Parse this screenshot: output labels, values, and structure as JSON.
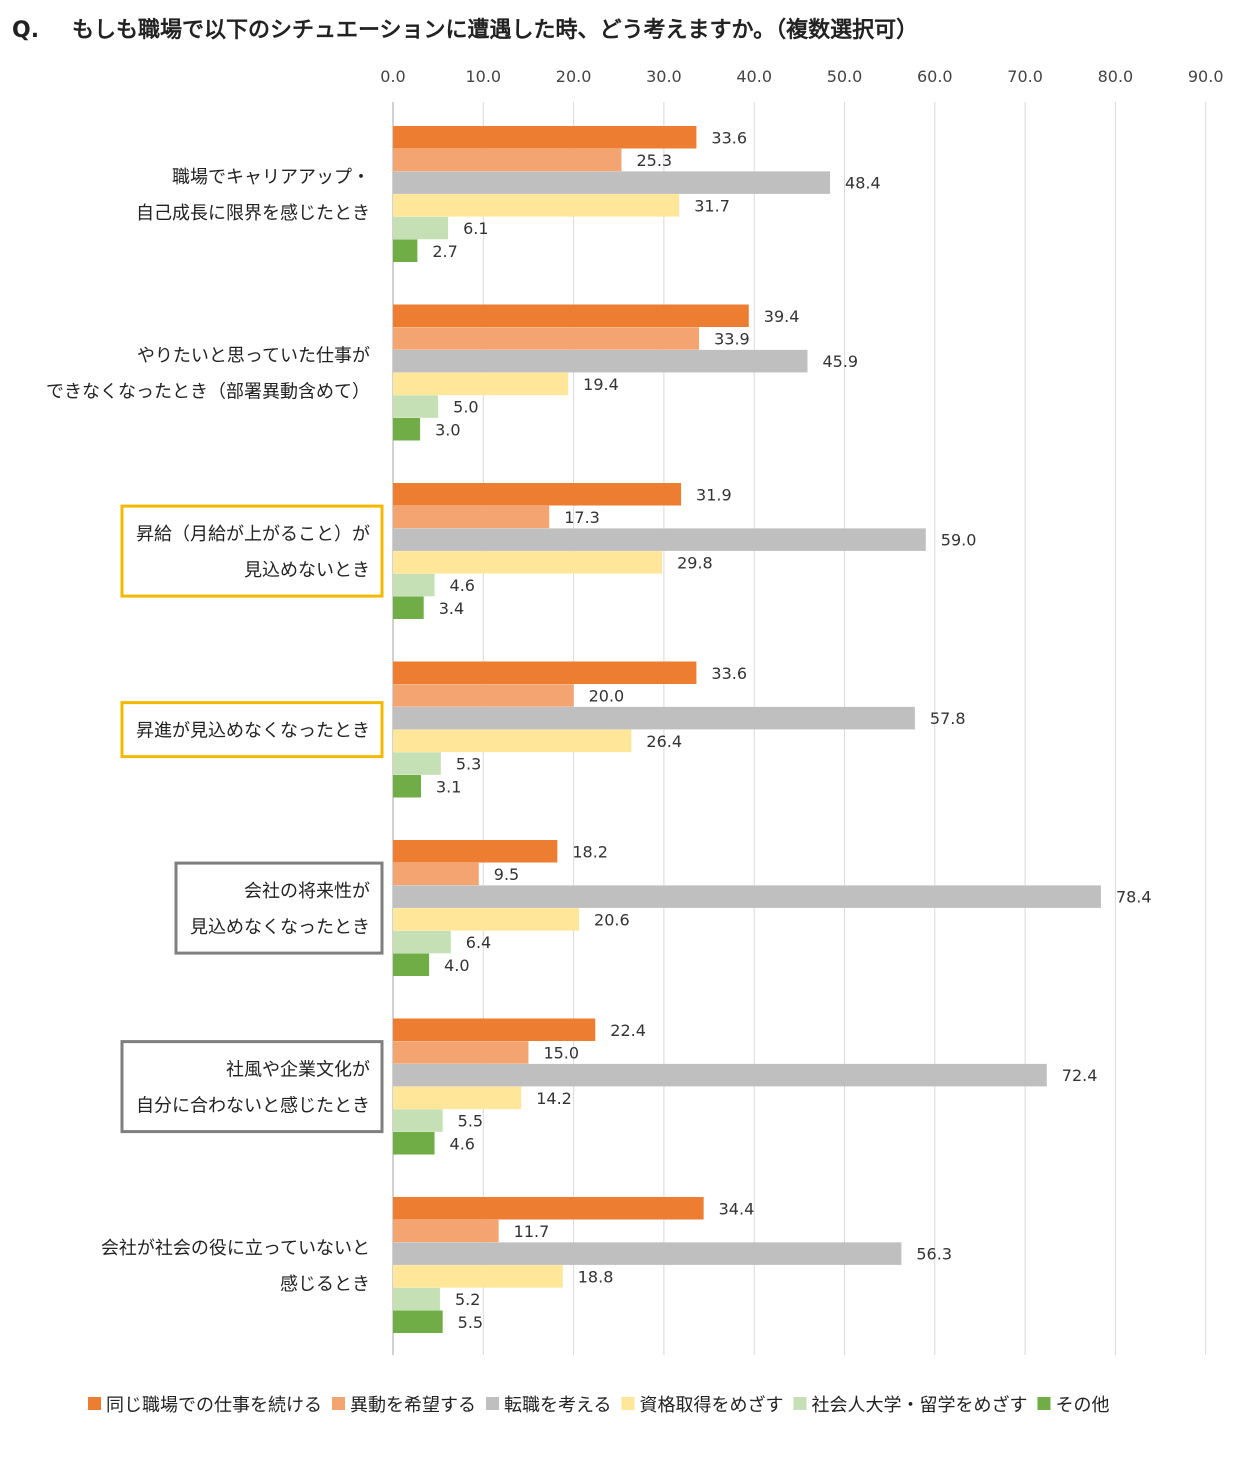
{
  "chart_data": {
    "type": "bar",
    "orientation": "horizontal",
    "title_prefix": "Q.",
    "title": "もしも職場で以下のシチュエーションに遭遇した時、どう考えますか。（複数選択可）",
    "xlim": [
      0,
      90
    ],
    "ticks": [
      "0.0",
      "10.0",
      "20.0",
      "30.0",
      "40.0",
      "50.0",
      "60.0",
      "70.0",
      "80.0",
      "90.0"
    ],
    "grid": true,
    "legend_position": "bottom",
    "categories": [
      {
        "lines": [
          "職場でキャリアアップ・",
          "自己成長に限界を感じたとき"
        ],
        "frame": "none"
      },
      {
        "lines": [
          "やりたいと思っていた仕事が",
          "できなくなったとき（部署異動含めて）"
        ],
        "frame": "none"
      },
      {
        "lines": [
          "昇給（月給が上がること）が",
          "見込めないとき"
        ],
        "frame": "yellow"
      },
      {
        "lines": [
          "昇進が見込めなくなったとき"
        ],
        "frame": "yellow"
      },
      {
        "lines": [
          "会社の将来性が",
          "見込めなくなったとき"
        ],
        "frame": "gray"
      },
      {
        "lines": [
          "社風や企業文化が",
          "自分に合わないと感じたとき"
        ],
        "frame": "gray"
      },
      {
        "lines": [
          "会社が社会の役に立っていないと",
          "感じるとき"
        ],
        "frame": "none"
      }
    ],
    "series": [
      {
        "name": "同じ職場での仕事を続ける",
        "color": "#ED7D31",
        "values": [
          33.6,
          39.4,
          31.9,
          33.6,
          18.2,
          22.4,
          34.4
        ]
      },
      {
        "name": "異動を希望する",
        "color": "#F4A470",
        "values": [
          25.3,
          33.9,
          17.3,
          20.0,
          9.5,
          15.0,
          11.7
        ]
      },
      {
        "name": "転職を考える",
        "color": "#BFBFBF",
        "values": [
          48.4,
          45.9,
          59.0,
          57.8,
          78.4,
          72.4,
          56.3
        ]
      },
      {
        "name": "資格取得をめざす",
        "color": "#FFE699",
        "values": [
          31.7,
          19.4,
          29.8,
          26.4,
          20.6,
          14.2,
          18.8
        ]
      },
      {
        "name": "社会人大学・留学をめざす",
        "color": "#C5E0B4",
        "values": [
          6.1,
          5.0,
          4.6,
          5.3,
          6.4,
          5.5,
          5.2
        ]
      },
      {
        "name": "その他",
        "color": "#70AD47",
        "values": [
          2.7,
          3.0,
          3.4,
          3.1,
          4.0,
          4.6,
          5.5
        ]
      }
    ],
    "frame_colors": {
      "yellow": "#F5B800",
      "gray": "#7F7F7F"
    }
  }
}
